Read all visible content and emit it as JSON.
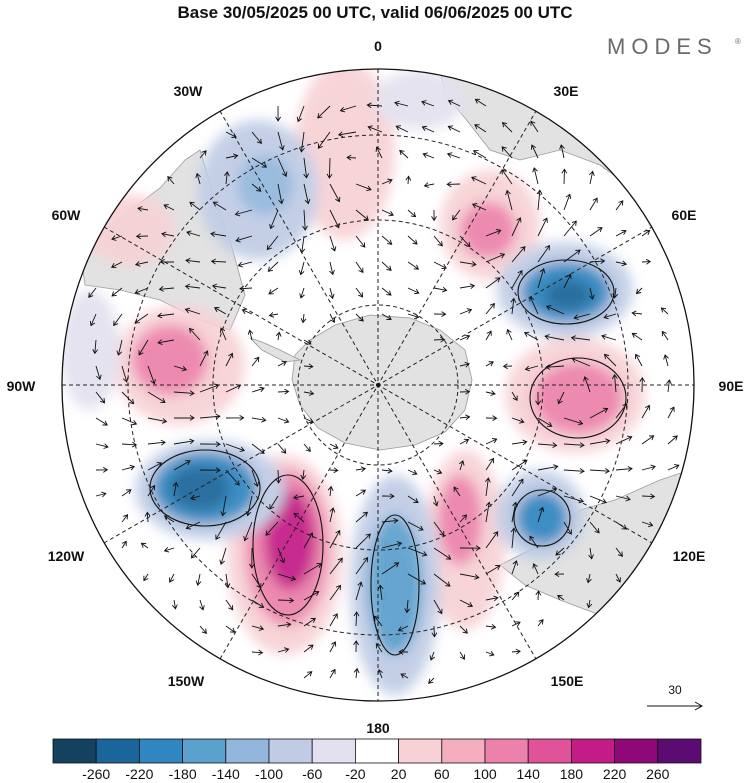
{
  "title": "Base 30/05/2025 00 UTC, valid 06/06/2025 00 UTC",
  "logo": {
    "text": "MODES",
    "mark": "®"
  },
  "longitude_labels": {
    "0": "0",
    "30E": "30E",
    "60E": "60E",
    "90E": "90E",
    "120E": "120E",
    "150E": "150E",
    "180": "180",
    "150W": "150W",
    "120W": "120W",
    "90W": "90W",
    "60W": "60W",
    "30W": "30W"
  },
  "reference_vector": {
    "label": "30"
  },
  "colorbar": {
    "ticks": [
      "-260",
      "-220",
      "-180",
      "-140",
      "-100",
      "-60",
      "-20",
      "20",
      "60",
      "100",
      "140",
      "180",
      "220",
      "260"
    ],
    "colors": [
      "#13425f",
      "#1a6599",
      "#2f86c0",
      "#5ba1ce",
      "#93b7dc",
      "#c0cce5",
      "#e3e1ef",
      "#ffffff",
      "#f7d1d5",
      "#f4aec0",
      "#ec82ab",
      "#e0529a",
      "#c41c87",
      "#90077a",
      "#5c0b73"
    ]
  },
  "colors": {
    "land": "#e2e2e2",
    "coast": "#9a9a9a",
    "grid": "#222222"
  }
}
